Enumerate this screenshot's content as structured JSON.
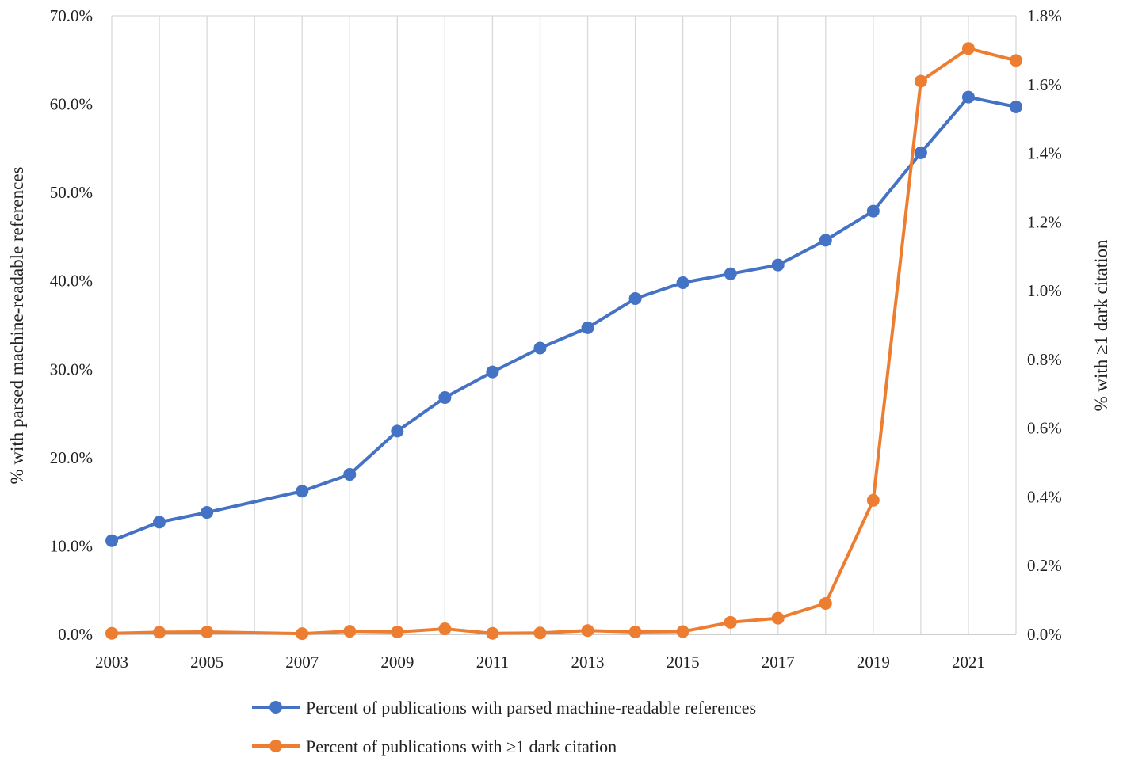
{
  "chart_data": {
    "type": "line",
    "title": "",
    "x_ticks": [
      "2003",
      "2005",
      "2007",
      "2009",
      "2011",
      "2013",
      "2015",
      "2017",
      "2019",
      "2021"
    ],
    "xlim": [
      2003,
      2022
    ],
    "y_left": {
      "label": "% with parsed machine-readable references",
      "ylim": [
        0,
        70
      ],
      "ticks": [
        "0.0%",
        "10.0%",
        "20.0%",
        "30.0%",
        "40.0%",
        "50.0%",
        "60.0%",
        "70.0%"
      ]
    },
    "y_right": {
      "label": "% with ≥1 dark citation",
      "ylim": [
        0,
        1.8
      ],
      "ticks": [
        "0.0%",
        "0.2%",
        "0.4%",
        "0.6%",
        "0.8%",
        "1.0%",
        "1.2%",
        "1.4%",
        "1.6%",
        "1.8%"
      ]
    },
    "grid": "vertical",
    "legend_position": "bottom",
    "series": [
      {
        "name": "Percent of publications with parsed machine-readable references",
        "axis": "left",
        "color": "#4472C4",
        "x": [
          2003,
          2004,
          2005,
          2007,
          2008,
          2009,
          2010,
          2011,
          2012,
          2013,
          2014,
          2015,
          2016,
          2017,
          2018,
          2019,
          2020,
          2021,
          2022
        ],
        "values": [
          10.6,
          12.7,
          13.8,
          16.2,
          18.1,
          23.0,
          26.8,
          29.7,
          32.4,
          34.7,
          38.0,
          39.8,
          40.8,
          41.8,
          44.6,
          47.9,
          54.5,
          60.8,
          59.7
        ]
      },
      {
        "name": "Percent of publications with ≥1 dark citation",
        "axis": "right",
        "color": "#ED7D31",
        "x": [
          2003,
          2004,
          2005,
          2007,
          2008,
          2009,
          2010,
          2011,
          2012,
          2013,
          2014,
          2015,
          2016,
          2017,
          2018,
          2019,
          2020,
          2021,
          2022
        ],
        "values": [
          0.003,
          0.006,
          0.007,
          0.002,
          0.009,
          0.007,
          0.016,
          0.003,
          0.004,
          0.011,
          0.007,
          0.008,
          0.035,
          0.047,
          0.09,
          0.39,
          1.61,
          1.705,
          1.67
        ]
      }
    ]
  }
}
